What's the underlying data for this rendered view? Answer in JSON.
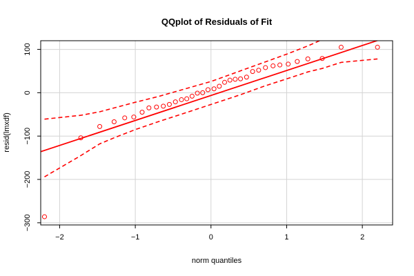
{
  "chart_data": {
    "type": "scatter",
    "title": "QQplot of Residuals of Fit",
    "xlabel": "norm quantiles",
    "ylabel": "resid(lmxdf)",
    "xlim": [
      -2.25,
      2.4
    ],
    "ylim": [
      -305,
      120
    ],
    "xticks": [
      -2,
      -1,
      0,
      1,
      2
    ],
    "yticks": [
      -300,
      -200,
      -100,
      0,
      100
    ],
    "grid": true,
    "colors": {
      "points": "#ff0000",
      "lines": "#ff0000",
      "grid": "#d3d3d3",
      "frame": "#000000"
    },
    "points": {
      "x": [
        -2.2,
        -1.72,
        -1.47,
        -1.28,
        -1.14,
        -1.02,
        -0.91,
        -0.82,
        -0.72,
        -0.63,
        -0.55,
        -0.47,
        -0.39,
        -0.32,
        -0.25,
        -0.18,
        -0.11,
        -0.04,
        0.04,
        0.11,
        0.18,
        0.25,
        0.32,
        0.39,
        0.47,
        0.55,
        0.63,
        0.72,
        0.82,
        0.91,
        1.02,
        1.14,
        1.28,
        1.47,
        1.72,
        2.2
      ],
      "y": [
        -286,
        -104,
        -78,
        -67,
        -58,
        -56,
        -45,
        -35,
        -33,
        -31,
        -27,
        -21,
        -16,
        -14,
        -8,
        -1,
        0,
        7,
        9,
        15,
        24,
        29,
        31,
        32,
        36,
        49,
        52,
        58,
        62,
        64,
        66,
        72,
        78,
        79,
        105,
        105
      ]
    },
    "fit_line": {
      "x": [
        -2.25,
        2.4
      ],
      "y": [
        -136,
        132
      ]
    },
    "upper_band": {
      "x": [
        -2.2,
        -1.72,
        -1.47,
        -1.28,
        -1.0,
        -0.7,
        -0.4,
        0.0,
        0.4,
        0.7,
        1.0,
        1.28,
        1.5,
        1.72
      ],
      "y": [
        -61,
        -52,
        -44,
        -35,
        -22,
        -9,
        6,
        26,
        51,
        70,
        89,
        108,
        125,
        140
      ]
    },
    "lower_band": {
      "x": [
        -2.2,
        -1.72,
        -1.47,
        -1.28,
        -1.0,
        -0.7,
        -0.4,
        0.0,
        0.4,
        0.7,
        1.0,
        1.28,
        1.47,
        1.72,
        2.2
      ],
      "y": [
        -194,
        -145,
        -118,
        -104,
        -85,
        -67,
        -50,
        -27,
        -4,
        15,
        32,
        48,
        56,
        70,
        78
      ]
    }
  }
}
